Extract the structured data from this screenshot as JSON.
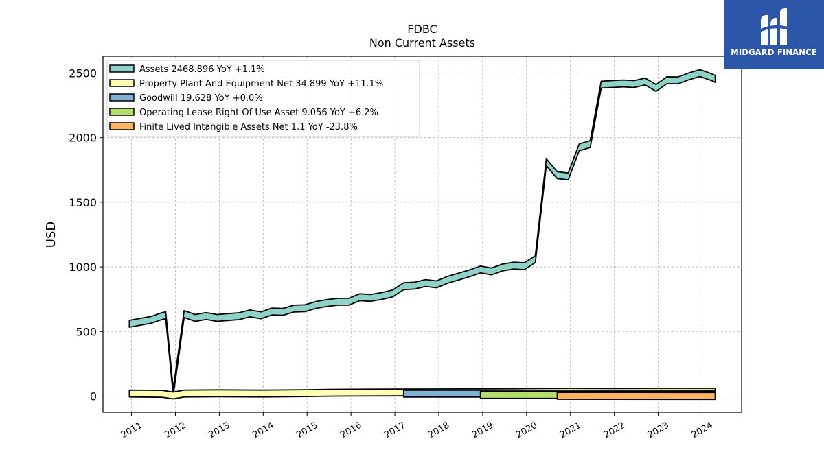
{
  "title": "FDBC",
  "subtitle": "Non Current  Assets",
  "brand": {
    "name": "MIDGARD FINANCE",
    "color": "#2c56a8"
  },
  "chart_data": {
    "type": "area",
    "ylabel": "USD",
    "ylim": [
      -125,
      2630
    ],
    "xlim": [
      2010.35,
      2024.9
    ],
    "yticks": [
      0,
      500,
      1000,
      1500,
      2000,
      2500
    ],
    "xticks": [
      "2011",
      "2012",
      "2013",
      "2014",
      "2015",
      "2016",
      "2017",
      "2018",
      "2019",
      "2020",
      "2021",
      "2022",
      "2023",
      "2024"
    ],
    "grid": true,
    "legend_position": "top-left",
    "series": [
      {
        "name": "Assets",
        "legend": "Assets  2468.896 YoY +1.1%",
        "color": "#8dd3c7",
        "x": [
          2010.95,
          2011.2,
          2011.45,
          2011.7,
          2011.78,
          2011.95,
          2012.2,
          2012.45,
          2012.7,
          2012.95,
          2013.2,
          2013.45,
          2013.7,
          2013.95,
          2014.2,
          2014.45,
          2014.7,
          2014.95,
          2015.2,
          2015.45,
          2015.7,
          2015.95,
          2016.2,
          2016.45,
          2016.7,
          2016.95,
          2017.2,
          2017.45,
          2017.7,
          2017.95,
          2018.2,
          2018.45,
          2018.7,
          2018.95,
          2019.2,
          2019.45,
          2019.7,
          2019.95,
          2020.2,
          2020.45,
          2020.7,
          2020.95,
          2021.2,
          2021.45,
          2021.7,
          2021.95,
          2022.2,
          2022.45,
          2022.7,
          2022.95,
          2023.2,
          2023.45,
          2023.7,
          2023.95,
          2024.2,
          2024.3
        ],
        "values": [
          560,
          575,
          590,
          620,
          625,
          30,
          635,
          605,
          620,
          605,
          612,
          618,
          640,
          625,
          655,
          652,
          677,
          680,
          705,
          720,
          730,
          730,
          765,
          760,
          775,
          795,
          850,
          855,
          875,
          865,
          900,
          925,
          950,
          980,
          965,
          995,
          1010,
          1005,
          1060,
          1810,
          1710,
          1700,
          1925,
          1950,
          2410,
          2415,
          2420,
          2415,
          2435,
          2385,
          2445,
          2443,
          2475,
          2500,
          2470,
          2455
        ]
      },
      {
        "name": "Property Plant And Equipment Net",
        "legend": "Property Plant And Equipment Net  34.899 YoY +11.1%",
        "color": "#ffffb3",
        "x": [
          2010.95,
          2011.7,
          2011.95,
          2012.2,
          2013.0,
          2014.0,
          2015.0,
          2015.45,
          2016.0,
          2017.0,
          2018.0,
          2019.0,
          2020.0,
          2020.45,
          2021.0,
          2022.0,
          2023.0,
          2024.3
        ],
        "values": [
          20,
          18,
          5,
          20,
          22,
          20,
          23,
          26,
          27,
          28,
          29,
          30,
          32,
          33,
          34,
          33,
          34,
          35
        ]
      },
      {
        "name": "Goodwill",
        "legend": "Goodwill  19.628 YoY +0.0%",
        "color": "#80b1d3",
        "x": [
          2017.2,
          2024.3
        ],
        "values": [
          19.628,
          19.628
        ]
      },
      {
        "name": "Operating Lease Right Of Use Asset",
        "legend": "Operating Lease Right Of Use Asset  9.056 YoY +6.2%",
        "color": "#b3de69",
        "x": [
          2018.95,
          2024.3
        ],
        "values": [
          9.0,
          9.056
        ]
      },
      {
        "name": "Finite Lived Intangible Assets Net",
        "legend": "Finite Lived Intangible Assets Net  1.1 YoY -23.8%",
        "color": "#fdb462",
        "x": [
          2020.7,
          2024.3
        ],
        "values": [
          2.5,
          1.1
        ]
      }
    ]
  }
}
